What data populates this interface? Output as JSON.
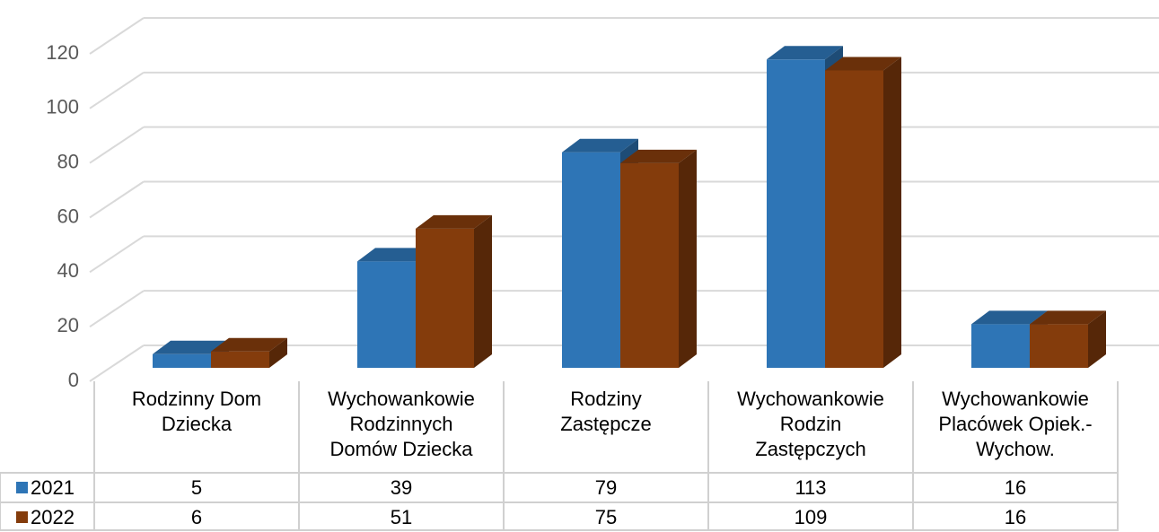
{
  "chart_data": {
    "type": "bar3d",
    "categories": [
      "Rodzinny Dom Dziecka",
      "Wychowankowie Rodzinnych Domów Dziecka",
      "Rodziny Zastępcze",
      "Wychowankowie Rodzin Zastępczych",
      "Wychowankowie Placówek Opiek.-Wychow."
    ],
    "series": [
      {
        "name": "2021",
        "color": "#2e75b6",
        "values": [
          5,
          39,
          79,
          113,
          16
        ]
      },
      {
        "name": "2022",
        "color": "#843c0c",
        "values": [
          6,
          51,
          75,
          109,
          16
        ]
      }
    ],
    "ylim": [
      0,
      120
    ],
    "yticks": [
      0,
      20,
      40,
      60,
      80,
      100,
      120
    ],
    "grid": true,
    "legend": "table"
  }
}
